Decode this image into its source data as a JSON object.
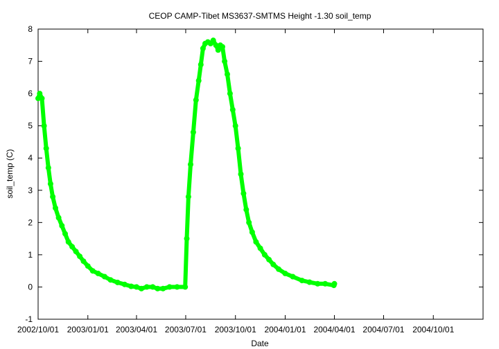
{
  "chart_data": {
    "type": "scatter",
    "title": "CEOP CAMP-Tibet MS3637-SMTMS Height -1.30 soil_temp",
    "xlabel": "Date",
    "ylabel": "soil_temp (C)",
    "ylim": [
      -1,
      8
    ],
    "xlim": [
      "2002-10-01",
      "2005-01-01"
    ],
    "grid": false,
    "series_color": "#00ff00",
    "x_ticks": [
      {
        "date": "2002-10-01",
        "label": "2002/10/01"
      },
      {
        "date": "2003-01-01",
        "label": "2003/01/01"
      },
      {
        "date": "2003-04-01",
        "label": "2003/04/01"
      },
      {
        "date": "2003-07-01",
        "label": "2003/07/01"
      },
      {
        "date": "2003-10-01",
        "label": "2003/10/01"
      },
      {
        "date": "2004-01-01",
        "label": "2004/01/01"
      },
      {
        "date": "2004-04-01",
        "label": "2004/04/01"
      },
      {
        "date": "2004-07-01",
        "label": "2004/07/01"
      },
      {
        "date": "2004-10-01",
        "label": "2004/10/01"
      }
    ],
    "y_ticks": [
      -1,
      0,
      1,
      2,
      3,
      4,
      5,
      6,
      7,
      8
    ],
    "series": [
      {
        "points": [
          [
            "2002-10-01",
            5.85
          ],
          [
            "2002-10-04",
            6.0
          ],
          [
            "2002-10-08",
            5.85
          ],
          [
            "2002-10-12",
            5.0
          ],
          [
            "2002-10-16",
            4.3
          ],
          [
            "2002-10-20",
            3.7
          ],
          [
            "2002-10-24",
            3.2
          ],
          [
            "2002-10-28",
            2.8
          ],
          [
            "2002-11-02",
            2.45
          ],
          [
            "2002-11-08",
            2.15
          ],
          [
            "2002-11-14",
            1.9
          ],
          [
            "2002-11-20",
            1.65
          ],
          [
            "2002-11-26",
            1.4
          ],
          [
            "2002-12-03",
            1.25
          ],
          [
            "2002-12-10",
            1.1
          ],
          [
            "2002-12-17",
            0.95
          ],
          [
            "2002-12-24",
            0.8
          ],
          [
            "2003-01-01",
            0.65
          ],
          [
            "2003-01-10",
            0.5
          ],
          [
            "2003-01-20",
            0.42
          ],
          [
            "2003-02-01",
            0.32
          ],
          [
            "2003-02-12",
            0.22
          ],
          [
            "2003-02-25",
            0.14
          ],
          [
            "2003-03-10",
            0.08
          ],
          [
            "2003-03-22",
            0.02
          ],
          [
            "2003-04-01",
            0.0
          ],
          [
            "2003-04-10",
            -0.05
          ],
          [
            "2003-04-20",
            0.0
          ],
          [
            "2003-05-01",
            0.0
          ],
          [
            "2003-05-10",
            -0.05
          ],
          [
            "2003-05-20",
            -0.05
          ],
          [
            "2003-06-01",
            0.0
          ],
          [
            "2003-06-15",
            0.0
          ],
          [
            "2003-06-30",
            0.0
          ],
          [
            "2003-07-03",
            1.5
          ],
          [
            "2003-07-06",
            2.8
          ],
          [
            "2003-07-10",
            3.8
          ],
          [
            "2003-07-15",
            4.8
          ],
          [
            "2003-07-20",
            5.8
          ],
          [
            "2003-07-25",
            6.4
          ],
          [
            "2003-07-29",
            6.9
          ],
          [
            "2003-08-02",
            7.4
          ],
          [
            "2003-08-06",
            7.55
          ],
          [
            "2003-08-11",
            7.6
          ],
          [
            "2003-08-16",
            7.55
          ],
          [
            "2003-08-21",
            7.65
          ],
          [
            "2003-08-26",
            7.5
          ],
          [
            "2003-08-30",
            7.35
          ],
          [
            "2003-09-03",
            7.5
          ],
          [
            "2003-09-07",
            7.45
          ],
          [
            "2003-09-11",
            7.0
          ],
          [
            "2003-09-16",
            6.6
          ],
          [
            "2003-09-21",
            6.0
          ],
          [
            "2003-09-26",
            5.5
          ],
          [
            "2003-10-01",
            5.0
          ],
          [
            "2003-10-06",
            4.3
          ],
          [
            "2003-10-11",
            3.5
          ],
          [
            "2003-10-16",
            2.9
          ],
          [
            "2003-10-21",
            2.4
          ],
          [
            "2003-10-26",
            2.0
          ],
          [
            "2003-11-01",
            1.7
          ],
          [
            "2003-11-08",
            1.4
          ],
          [
            "2003-11-16",
            1.2
          ],
          [
            "2003-11-24",
            1.0
          ],
          [
            "2003-12-02",
            0.85
          ],
          [
            "2003-12-10",
            0.7
          ],
          [
            "2003-12-20",
            0.55
          ],
          [
            "2004-01-01",
            0.42
          ],
          [
            "2004-01-15",
            0.32
          ],
          [
            "2004-02-01",
            0.2
          ],
          [
            "2004-02-15",
            0.15
          ],
          [
            "2004-03-01",
            0.1
          ],
          [
            "2004-03-15",
            0.1
          ],
          [
            "2004-03-31",
            0.05
          ],
          [
            "2004-04-01",
            0.1
          ]
        ]
      }
    ]
  }
}
